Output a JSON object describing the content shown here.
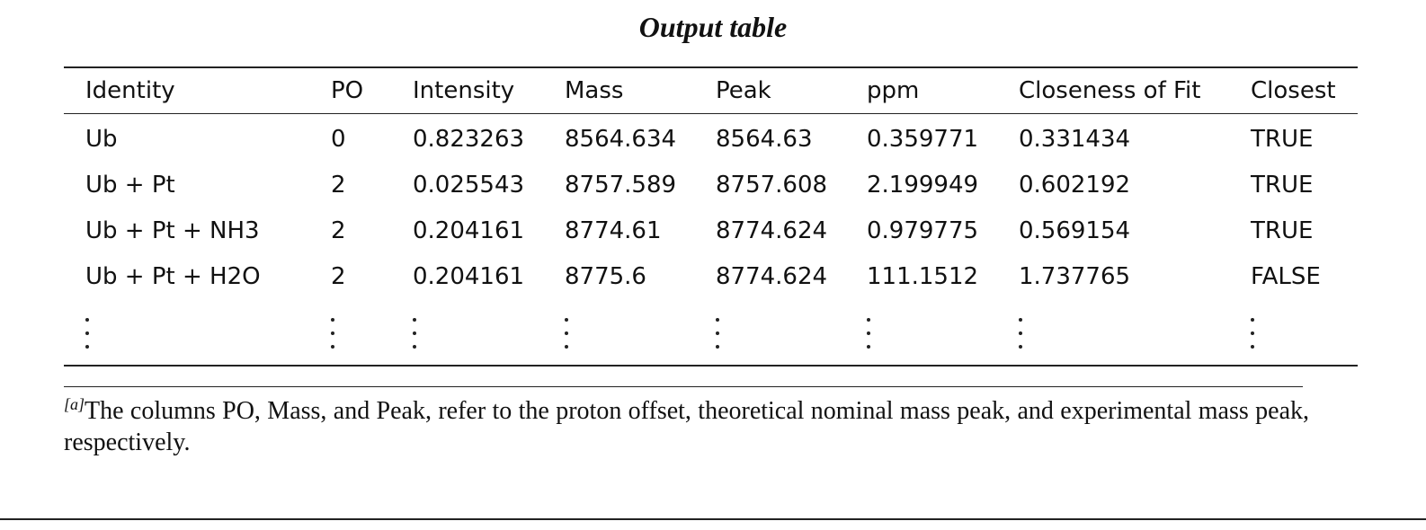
{
  "title": "Output table",
  "table": {
    "headers": [
      "Identity",
      "PO",
      "Intensity",
      "Mass",
      "Peak",
      "ppm",
      "Closeness of Fit",
      "Closest"
    ],
    "rows": [
      [
        "Ub",
        "0",
        "0.823263",
        "8564.634",
        "8564.63",
        "0.359771",
        "0.331434",
        "TRUE"
      ],
      [
        "Ub + Pt",
        "2",
        "0.025543",
        "8757.589",
        "8757.608",
        "2.199949",
        "0.602192",
        "TRUE"
      ],
      [
        "Ub + Pt + NH3",
        "2",
        "0.204161",
        "8774.61",
        "8774.624",
        "0.979775",
        "0.569154",
        "TRUE"
      ],
      [
        "Ub + Pt + H2O",
        "2",
        "0.204161",
        "8775.6",
        "8774.624",
        "111.1512",
        "1.737765",
        "FALSE"
      ]
    ],
    "continuation": "⋮"
  },
  "footnote": {
    "marker": "[a]",
    "text": "The columns PO, Mass, and Peak, refer to the proton offset, theoretical nominal mass peak, and experimental mass peak, respectively."
  }
}
